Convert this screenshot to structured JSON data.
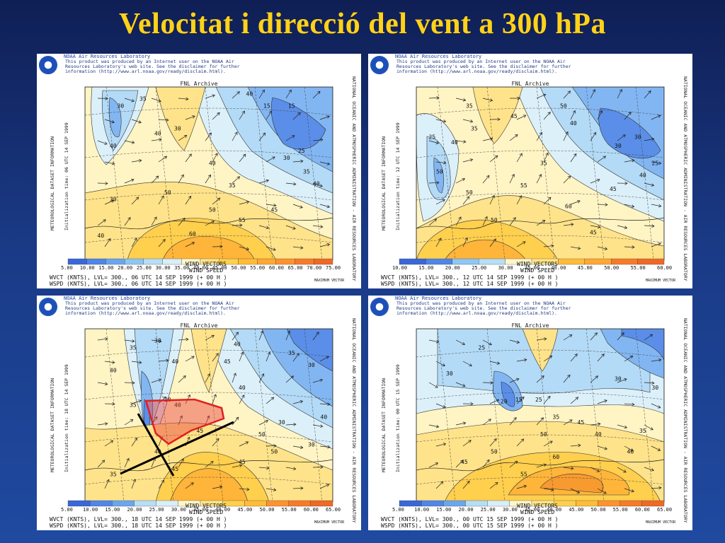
{
  "slide": {
    "title": "Velocitat i direcció del vent a 300 hPa"
  },
  "panels": [
    {
      "header": [
        "NOAA Air Resources Laboratory",
        "This product was produced by an Internet user on the NOAA Air",
        "Resources Laboratory's web site.  See the disclaimer for further",
        "information (http://www.arl.noaa.gov/ready/disclaim.html)."
      ],
      "archive": "FNL Archive",
      "left_label": "METEOROLOGICAL DATASET INFORMATION",
      "init_label": "Initialization time: 06 UTC 14 SEP 1999",
      "right_label": "NATIONAL OCEANIC AND ATMOSPHERIC ADMINISTRATION - AIR RESOURCES LABORATORY",
      "scale": [
        "5.00",
        "10.00",
        "15.00",
        "20.00",
        "25.00",
        "30.00",
        "35.00",
        "40.00",
        "45.00",
        "50.00",
        "55.00",
        "60.00",
        "65.00",
        "70.00",
        "75.00"
      ],
      "vectors_label": "WIND VECTORS",
      "speed_label": "WIND SPEED",
      "foot": [
        "WVCT (KNTS), LVL= 300., 06 UTC 14 SEP 1999 (+ 00 H )",
        "WSPD (KNTS), LVL= 300., 06 UTC 14 SEP 1999 (+ 00 H )"
      ],
      "max_vector": "MAXIMUM VECTOR",
      "contours": [
        "30",
        "40",
        "40",
        "35",
        "30",
        "15",
        "15",
        "40",
        "35",
        "35",
        "40",
        "30",
        "40",
        "50",
        "50",
        "55",
        "60",
        "45",
        "40",
        "30",
        "25"
      ],
      "variant": 1
    },
    {
      "header": [
        "NOAA Air Resources Laboratory",
        "This product was produced by an Internet user on the NOAA Air",
        "Resources Laboratory's web site.  See the disclaimer for further",
        "information (http://www.arl.noaa.gov/ready/disclaim.html)."
      ],
      "archive": "FNL Archive",
      "left_label": "METEOROLOGICAL DATASET INFORMATION",
      "init_label": "Initialization time: 12 UTC 14 SEP 1999",
      "right_label": "NATIONAL OCEANIC AND ATMOSPHERIC ADMINISTRATION - AIR RESOURCES LABORATORY",
      "scale": [
        "10.00",
        "15.00",
        "20.00",
        "25.00",
        "30.00",
        "35.00",
        "40.00",
        "45.00",
        "50.00",
        "55.00",
        "60.00"
      ],
      "vectors_label": "WIND VECTORS",
      "speed_label": "WIND SPEED",
      "foot": [
        "WVCT (KNTS), LVL= 300., 12 UTC 14 SEP 1999 (+ 00 H )",
        "WSPD (KNTS), LVL= 300., 12 UTC 14 SEP 1999 (+ 00 H )"
      ],
      "max_vector": "MAXIMUM VECTOR",
      "contours": [
        "35",
        "25",
        "40",
        "35",
        "45",
        "50",
        "40",
        "30",
        "40",
        "35",
        "45",
        "50",
        "50",
        "55",
        "60",
        "50",
        "45",
        "30",
        "25"
      ],
      "variant": 2
    },
    {
      "header": [
        "NOAA Air Resources Laboratory",
        "This product was produced by an Internet user on the NOAA Air",
        "Resources Laboratory's web site.  See the disclaimer for further",
        "information (http://www.arl.noaa.gov/ready/disclaim.html)."
      ],
      "archive": "FNL Archive",
      "left_label": "METEOROLOGICAL DATASET INFORMATION",
      "init_label": "Initialization time: 18 UTC 14 SEP 1999",
      "right_label": "NATIONAL OCEANIC AND ATMOSPHERIC ADMINISTRATION - AIR RESOURCES LABORATORY",
      "scale": [
        "5.00",
        "10.00",
        "15.00",
        "20.00",
        "25.00",
        "30.00",
        "35.00",
        "40.00",
        "45.00",
        "50.00",
        "55.00",
        "60.00",
        "65.00"
      ],
      "vectors_label": "WIND VECTORS",
      "speed_label": "WIND SPEED",
      "foot": [
        "WVCT (KNTS), LVL= 300., 18 UTC 14 SEP 1999 (+ 00 H )",
        "WSPD (KNTS), LVL= 300., 18 UTC 14 SEP 1999 (+ 00 H )"
      ],
      "max_vector": "MAXIMUM VECTOR",
      "contours": [
        "35",
        "40",
        "30",
        "40",
        "45",
        "40",
        "35",
        "30",
        "40",
        "20",
        "35",
        "45",
        "40",
        "50",
        "30",
        "40",
        "45",
        "45",
        "50",
        "40",
        "35",
        "30"
      ],
      "variant": 3
    },
    {
      "header": [
        "NOAA Air Resources Laboratory",
        "This product was produced by an Internet user on the NOAA Air",
        "Resources Laboratory's web site.  See the disclaimer for further",
        "information (http://www.arl.noaa.gov/ready/disclaim.html)."
      ],
      "archive": "FNL Archive",
      "left_label": "METEOROLOGICAL DATASET INFORMATION",
      "init_label": "Initialization time: 00 UTC 15 SEP 1999",
      "right_label": "NATIONAL OCEANIC AND ATMOSPHERIC ADMINISTRATION - AIR RESOURCES LABORATORY",
      "scale": [
        "5.00",
        "10.00",
        "15.00",
        "20.00",
        "25.00",
        "30.00",
        "35.00",
        "40.00",
        "45.00",
        "50.00",
        "55.00",
        "60.00",
        "65.00"
      ],
      "vectors_label": "WIND VECTORS",
      "speed_label": "WIND SPEED",
      "foot": [
        "WVCT (KNTS), LVL= 300., 00 UTC 15 SEP 1999 (+ 00 H )",
        "WSPD (KNTS), LVL= 300., 00 UTC 15 SEP 1999 (+ 00 H )"
      ],
      "max_vector": "MAXIMUM VECTOR",
      "contours": [
        "25",
        "30",
        "20",
        "15",
        "25",
        "35",
        "40",
        "30",
        "45",
        "50",
        "60",
        "55",
        "50",
        "45",
        "40",
        "35",
        "30"
      ],
      "variant": 4
    }
  ],
  "annotation": {
    "shape_color": "#e02020",
    "line_color": "#000000"
  },
  "colors": {
    "scale": [
      "#3a67d8",
      "#4f86e8",
      "#6aa6f0",
      "#8ec6f6",
      "#b6def6",
      "#d8eef8",
      "#fff6c8",
      "#ffe48a",
      "#ffd04e",
      "#ffbc3a",
      "#ffa834",
      "#ff9230",
      "#f77a2a",
      "#ee6a26"
    ]
  }
}
